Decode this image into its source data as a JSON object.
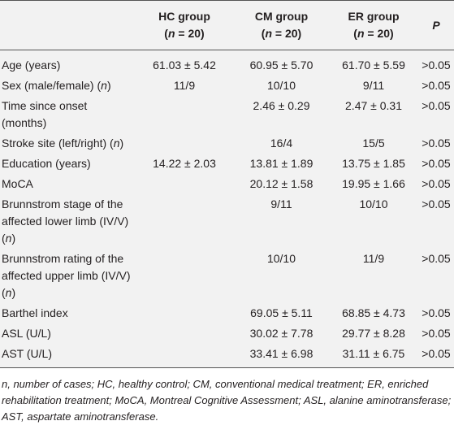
{
  "table": {
    "header": [
      null,
      {
        "title": "HC group",
        "sub": [
          "(",
          "n",
          " = 20)"
        ]
      },
      {
        "title": "CM group",
        "sub": [
          "(",
          "n",
          " = 20)"
        ]
      },
      {
        "title": "ER group",
        "sub": [
          "(",
          "n",
          " = 20)"
        ]
      },
      {
        "title": "P"
      }
    ],
    "rows": [
      {
        "label": [
          "Age (years)"
        ],
        "cells": [
          "61.03 ± 5.42",
          "60.95 ± 5.70",
          "61.70 ± 5.59",
          ">0.05"
        ]
      },
      {
        "label": [
          "Sex (male/female) (",
          "n",
          ")"
        ],
        "cells": [
          "11/9",
          "10/10",
          "9/11",
          ">0.05"
        ]
      },
      {
        "label": [
          "Time since onset (months)"
        ],
        "cells": [
          null,
          "2.46 ± 0.29",
          "2.47 ± 0.31",
          ">0.05"
        ]
      },
      {
        "label": [
          "Stroke site (left/right) (",
          "n",
          ")"
        ],
        "cells": [
          null,
          "16/4",
          "15/5",
          ">0.05"
        ]
      },
      {
        "label": [
          "Education (years)"
        ],
        "cells": [
          "14.22 ± 2.03",
          "13.81 ± 1.89",
          "13.75 ± 1.85",
          ">0.05"
        ]
      },
      {
        "label": [
          "MoCA"
        ],
        "cells": [
          null,
          "20.12 ± 1.58",
          "19.95 ± 1.66",
          ">0.05"
        ]
      },
      {
        "label": [
          "Brunnstrom stage of the affected lower limb (IV/V) (",
          "n",
          ")"
        ],
        "cells": [
          null,
          "9/11",
          "10/10",
          ">0.05"
        ]
      },
      {
        "label": [
          "Brunnstrom rating of the affected upper limb (IV/V) (",
          "n",
          ")"
        ],
        "cells": [
          null,
          "10/10",
          "11/9",
          ">0.05"
        ]
      },
      {
        "label": [
          "Barthel index"
        ],
        "cells": [
          null,
          "69.05 ± 5.11",
          "68.85 ± 4.73",
          ">0.05"
        ]
      },
      {
        "label": [
          "ASL (U/L)"
        ],
        "cells": [
          null,
          "30.02 ± 7.78",
          "29.77 ± 8.28",
          ">0.05"
        ]
      },
      {
        "label": [
          "AST (U/L)"
        ],
        "cells": [
          null,
          "33.41 ± 6.98",
          "31.11 ± 6.75",
          ">0.05"
        ]
      }
    ],
    "footnote": "n, number of cases; HC, healthy control; CM, conventional medical treatment; ER, enriched rehabilitation treatment; MoCA, Montreal Cognitive Assessment; ASL, alanine aminotransferase; AST, aspartate aminotransferase."
  }
}
